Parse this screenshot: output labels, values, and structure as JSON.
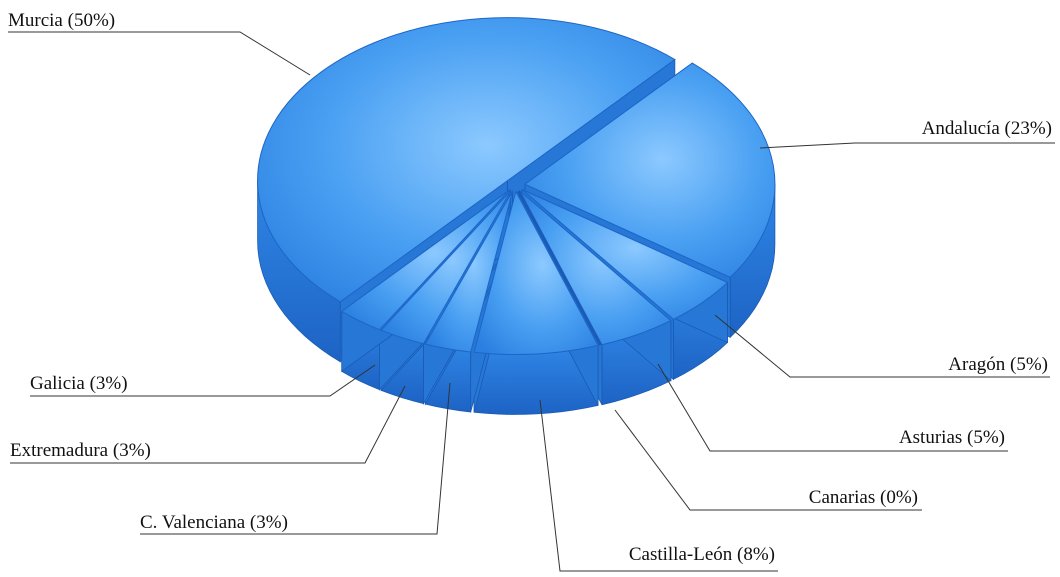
{
  "chart_data": {
    "type": "pie",
    "style": "3d exploded",
    "color": "#2f86e6",
    "slices": [
      {
        "label": "Murcia (50%)",
        "value": 50
      },
      {
        "label": "Andalucía (23%)",
        "value": 23
      },
      {
        "label": "Aragón (5%)",
        "value": 5
      },
      {
        "label": "Asturias (5%)",
        "value": 5
      },
      {
        "label": "Canarias (0%)",
        "value": 0
      },
      {
        "label": "Castilla-León (8%)",
        "value": 8
      },
      {
        "label": "C. Valenciana (3%)",
        "value": 3
      },
      {
        "label": "Extremadura (3%)",
        "value": 3
      },
      {
        "label": "Galicia (3%)",
        "value": 3
      }
    ]
  }
}
